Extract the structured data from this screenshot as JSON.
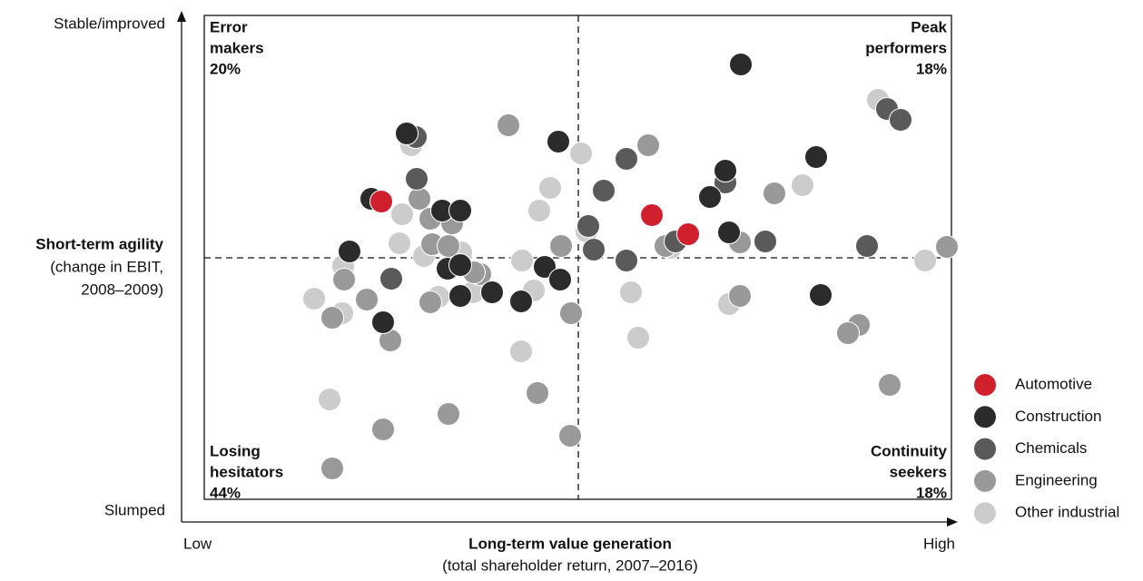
{
  "chart_data": {
    "type": "scatter",
    "x_label": "Long-term value generation",
    "x_sublabel": "(total shareholder return, 2007–2016)",
    "y_label": "Short-term agility",
    "y_sublabel_lines": [
      "(change in EBIT,",
      "2008–2009)"
    ],
    "xlim": [
      0,
      850
    ],
    "ylim": [
      0,
      560
    ],
    "xticks": [
      {
        "value": 0,
        "label": "Low"
      },
      {
        "value": 850,
        "label": "High"
      }
    ],
    "yticks": [
      {
        "value": 12,
        "label": "Slumped"
      },
      {
        "value": 548,
        "label": "Stable/improved"
      }
    ],
    "quadrants": [
      {
        "lines": [
          "Error",
          "makers"
        ],
        "share": "20%",
        "corner": "top-left"
      },
      {
        "lines": [
          "Peak",
          "performers"
        ],
        "share": "18%",
        "corner": "top-right"
      },
      {
        "lines": [
          "Losing",
          "hesitators"
        ],
        "share": "44%",
        "corner": "bottom-left"
      },
      {
        "lines": [
          "Continuity",
          "seekers"
        ],
        "share": "18%",
        "corner": "bottom-right"
      }
    ],
    "legend": "bottom-right",
    "series": [
      {
        "name": "Automotive",
        "color": "#d0202e",
        "x": [
          220,
          518,
          558
        ],
        "values": [
          353,
          338,
          317
        ]
      },
      {
        "name": "Construction",
        "color": "#2b2b2b",
        "x": [
          616,
          248,
          415,
          209,
          287,
          307,
          599,
          582,
          699,
          185,
          293,
          307,
          400,
          417,
          307,
          342,
          374,
          222,
          603,
          704
        ],
        "values": [
          504,
          428,
          419,
          356,
          343,
          343,
          387,
          358,
          402,
          298,
          279,
          283,
          281,
          267,
          249,
          253,
          243,
          220,
          319,
          250
        ]
      },
      {
        "name": "Chemicals",
        "color": "#5a5a5a",
        "x": [
          258,
          259,
          490,
          465,
          599,
          448,
          454,
          490,
          544,
          643,
          755,
          777,
          792,
          231
        ],
        "values": [
          424,
          378,
          400,
          365,
          374,
          326,
          300,
          288,
          309,
          309,
          304,
          455,
          443,
          268
        ]
      },
      {
        "name": "Engineering",
        "color": "#999999",
        "x": [
          360,
          514,
          262,
          274,
          298,
          276,
          294,
          418,
          533,
          615,
          653,
          329,
          179,
          204,
          166,
          274,
          230,
          429,
          615,
          746,
          734,
          780,
          392,
          294,
          222,
          428,
          166,
          843,
          322
        ],
        "values": [
          437,
          415,
          356,
          334,
          329,
          306,
          304,
          304,
          304,
          308,
          362,
          273,
          267,
          245,
          225,
          242,
          200,
          230,
          249,
          217,
          208,
          151,
          142,
          119,
          102,
          95,
          59,
          303,
          275
        ]
      },
      {
        "name": "Other industrial",
        "color": "#cccccc",
        "x": [
          440,
          406,
          394,
          253,
          243,
          240,
          267,
          308,
          375,
          446,
          178,
          146,
          177,
          283,
          321,
          388,
          495,
          603,
          503,
          374,
          163,
          684,
          767,
          819,
          539
        ],
        "values": [
          406,
          368,
          343,
          415,
          339,
          307,
          293,
          297,
          288,
          320,
          282,
          246,
          230,
          248,
          253,
          255,
          253,
          240,
          203,
          188,
          135,
          371,
          465,
          288,
          302
        ]
      }
    ]
  }
}
